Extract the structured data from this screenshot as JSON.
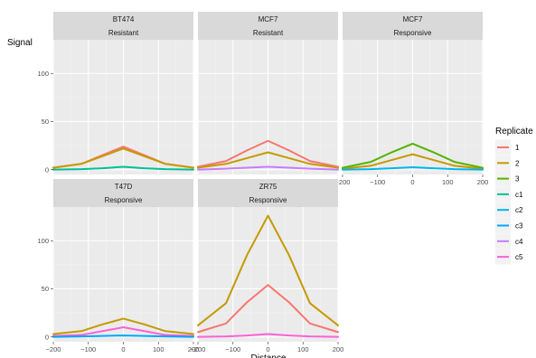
{
  "chart_data": {
    "type": "line",
    "xlabel": "Distance",
    "ylabel": "Signal",
    "xlim": [
      -200,
      200
    ],
    "ylim": [
      -5,
      135
    ],
    "xticks": [
      -200,
      -100,
      0,
      100,
      200
    ],
    "yticks": [
      0,
      50,
      100
    ],
    "legend": {
      "title": "Replicate",
      "position": "right",
      "entries": [
        {
          "name": "1",
          "color": "#F8766D"
        },
        {
          "name": "2",
          "color": "#C49A00"
        },
        {
          "name": "3",
          "color": "#53B400"
        },
        {
          "name": "c1",
          "color": "#00C094"
        },
        {
          "name": "c2",
          "color": "#00B6EB"
        },
        {
          "name": "c3",
          "color": "#00A6FF"
        },
        {
          "name": "c4",
          "color": "#C77CFF"
        },
        {
          "name": "c5",
          "color": "#FB61D7"
        }
      ]
    },
    "x": [
      -200,
      -120,
      -60,
      0,
      60,
      120,
      200
    ],
    "panels": [
      {
        "strip": [
          "BT474",
          "Resistant"
        ],
        "series": [
          {
            "name": "1",
            "values": [
              2,
              6,
              15,
              24,
              15,
              6,
              2
            ]
          },
          {
            "name": "2",
            "values": [
              2,
              6,
              14,
              22,
              14,
              6,
              2
            ]
          },
          {
            "name": "c1",
            "values": [
              0,
              0.5,
              1.5,
              3,
              1.5,
              0.5,
              0
            ]
          }
        ]
      },
      {
        "strip": [
          "MCF7",
          "Resistant"
        ],
        "series": [
          {
            "name": "1",
            "values": [
              3,
              9,
              20,
              30,
              20,
              9,
              3
            ]
          },
          {
            "name": "2",
            "values": [
              2,
              6,
              12,
              18,
              12,
              6,
              2
            ]
          },
          {
            "name": "c4",
            "values": [
              0,
              1,
              2,
              3,
              2,
              1,
              0
            ]
          }
        ]
      },
      {
        "strip": [
          "MCF7",
          "Responsive"
        ],
        "series": [
          {
            "name": "2",
            "values": [
              1,
              4,
              10,
              16,
              10,
              4,
              1
            ]
          },
          {
            "name": "3",
            "values": [
              2,
              8,
              18,
              27,
              18,
              8,
              2
            ]
          },
          {
            "name": "c2",
            "values": [
              0,
              0.5,
              1.5,
              2.5,
              1.5,
              0.5,
              0
            ]
          }
        ]
      },
      {
        "strip": [
          "T47D",
          "Responsive"
        ],
        "series": [
          {
            "name": "2",
            "values": [
              3,
              6,
              13,
              19,
              13,
              6,
              3
            ]
          },
          {
            "name": "c5",
            "values": [
              1,
              2,
              6,
              10,
              6,
              2,
              1
            ]
          },
          {
            "name": "c3",
            "values": [
              0,
              0.5,
              1,
              1.5,
              1,
              0.5,
              0
            ]
          }
        ]
      },
      {
        "strip": [
          "ZR75",
          "Responsive"
        ],
        "series": [
          {
            "name": "2",
            "values": [
              12,
              35,
              85,
              126,
              85,
              35,
              12
            ]
          },
          {
            "name": "1",
            "values": [
              5,
              14,
              36,
              54,
              36,
              14,
              5
            ]
          },
          {
            "name": "c5",
            "values": [
              0,
              0.5,
              1.5,
              3,
              1.5,
              0.5,
              0
            ]
          }
        ]
      }
    ]
  }
}
